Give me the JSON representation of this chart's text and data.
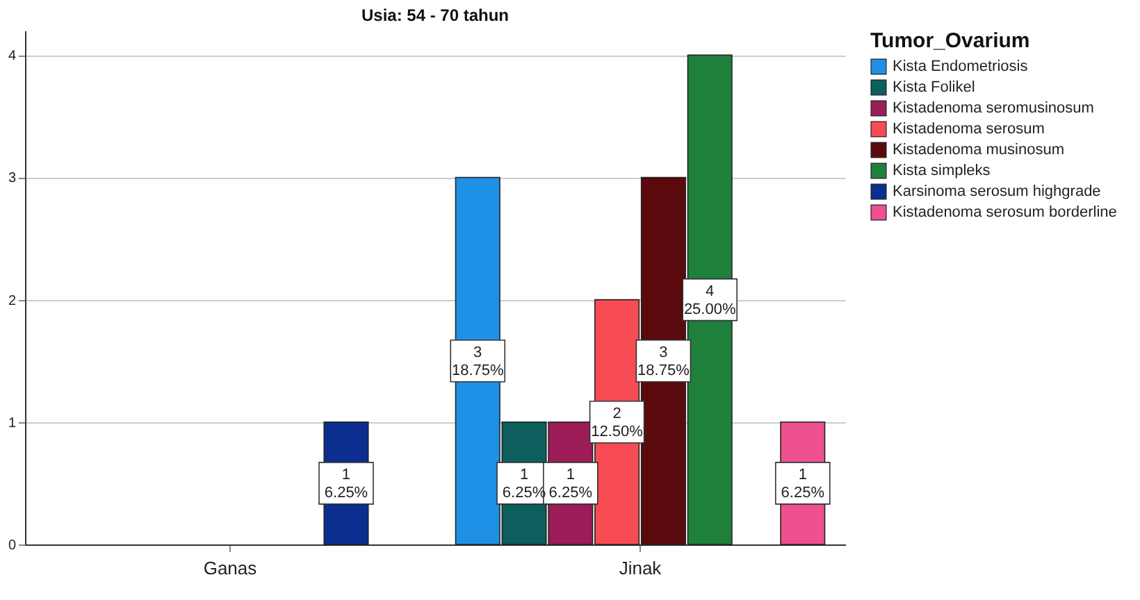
{
  "chart_data": {
    "type": "bar",
    "title": "Usia: 54 - 70 tahun",
    "legend_title": "Tumor_Ovarium",
    "categories": [
      "Ganas",
      "Jinak"
    ],
    "series": [
      {
        "name": "Kista Endometriosis",
        "color": "#1e90e6",
        "values": [
          null,
          3
        ],
        "value_labels": [
          null,
          "3\n18.75%"
        ]
      },
      {
        "name": "Kista Folikel",
        "color": "#0c5f5c",
        "values": [
          null,
          1
        ],
        "value_labels": [
          null,
          "1\n6.25%"
        ]
      },
      {
        "name": "Kistadenoma seromusinosum",
        "color": "#9c1c58",
        "values": [
          null,
          1
        ],
        "value_labels": [
          null,
          "1\n6.25%"
        ]
      },
      {
        "name": "Kistadenoma serosum",
        "color": "#f84c54",
        "values": [
          null,
          2
        ],
        "value_labels": [
          null,
          "2\n12.50%"
        ]
      },
      {
        "name": "Kistadenoma musinosum",
        "color": "#5a0a0c",
        "values": [
          null,
          3
        ],
        "value_labels": [
          null,
          "3\n18.75%"
        ]
      },
      {
        "name": "Kista simpleks",
        "color": "#1f803c",
        "values": [
          null,
          4
        ],
        "value_labels": [
          null,
          "4\n25.00%"
        ]
      },
      {
        "name": "Karsinoma serosum highgrade",
        "color": "#0b2e90",
        "values": [
          1,
          null
        ],
        "value_labels": [
          "1\n6.25%",
          null
        ]
      },
      {
        "name": "Kistadenoma serosum borderline",
        "color": "#ee5090",
        "values": [
          null,
          1
        ],
        "value_labels": [
          null,
          "1\n6.25%"
        ]
      }
    ],
    "ylim": [
      0,
      4.2
    ],
    "yticks": [
      0,
      1,
      2,
      3,
      4
    ],
    "grid": "y",
    "legend": "right"
  }
}
